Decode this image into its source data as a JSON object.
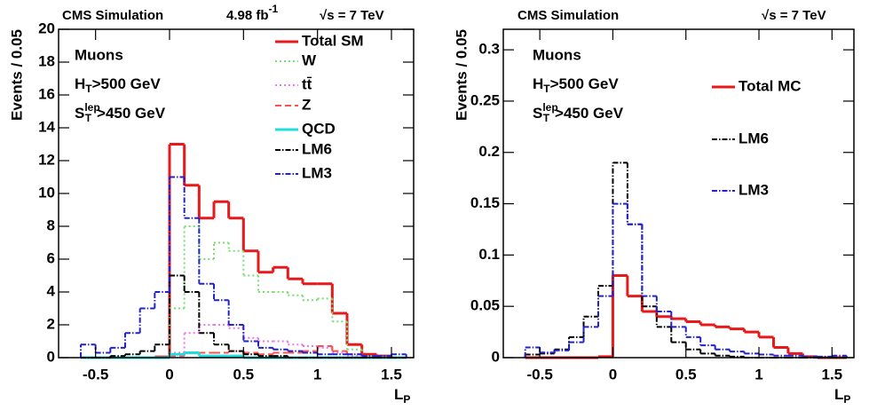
{
  "chart_data": [
    {
      "type": "histogram",
      "title": "CMS Simulation",
      "lumi": {
        "main": "4.98 fb",
        "sup": "-1"
      },
      "energy": "√s = 7 TeV",
      "annotations": [
        "Muons",
        {
          "main": "H",
          "sub": "T",
          "rest": ">500 GeV"
        },
        {
          "main": "S",
          "sub": "T",
          "sup": "lep",
          "rest": ">450 GeV"
        }
      ],
      "y_label": "Events / 0.05",
      "x_label": {
        "main": "L",
        "sub": "P"
      },
      "bins": [
        -0.6,
        -0.5,
        -0.4,
        -0.3,
        -0.2,
        -0.1,
        0,
        0.1,
        0.2,
        0.3,
        0.4,
        0.5,
        0.6,
        0.7,
        0.8,
        0.9,
        1,
        1.1,
        1.2,
        1.3,
        1.4,
        1.5,
        1.6
      ],
      "series": [
        {
          "name": "Total SM",
          "color": "#e8191a",
          "dash": "solid",
          "width": 3,
          "values": [
            0,
            0,
            0,
            0,
            0,
            0.05,
            13,
            10.5,
            8.5,
            9.5,
            8.5,
            6.5,
            5.2,
            5.5,
            4.8,
            4.5,
            4.5,
            2.7,
            0.8,
            0.2,
            0.1,
            0
          ]
        },
        {
          "name": "W",
          "color": "#77e070",
          "dash": "dotted",
          "width": 2,
          "values": [
            0,
            0,
            0,
            0,
            0,
            0,
            3,
            8,
            6,
            7,
            6.5,
            5,
            4,
            4,
            3.8,
            3.5,
            3.6,
            2.2,
            0.5,
            0.1,
            0,
            0
          ]
        },
        {
          "name": "tt̄",
          "color": "#ee77ee",
          "dash": "dotted",
          "width": 2,
          "values": [
            0,
            0,
            0,
            0,
            0,
            0,
            0.3,
            1.5,
            2,
            2,
            1.8,
            1.2,
            1,
            1,
            0.8,
            0.7,
            0.6,
            0.3,
            0.1,
            0,
            0,
            0
          ]
        },
        {
          "name": "Z",
          "color": "#ff5050",
          "dash": "dashed",
          "width": 2,
          "values": [
            0,
            0,
            0,
            0,
            0,
            0,
            0.1,
            0.3,
            0.3,
            0.3,
            0.4,
            0.3,
            0.2,
            0.3,
            0.3,
            0.4,
            0.7,
            0.4,
            0.2,
            0.1,
            0,
            0
          ]
        },
        {
          "name": "QCD",
          "color": "#22dddd",
          "dash": "solid",
          "width": 3,
          "values": [
            0,
            0,
            0,
            0,
            0,
            0,
            0.2,
            0.3,
            0.1,
            0.1,
            0.1,
            0,
            0,
            0,
            0,
            0,
            0,
            0,
            0,
            0,
            0,
            0
          ]
        },
        {
          "name": "LM6",
          "color": "#000000",
          "dash": "dashdot",
          "width": 2,
          "values": [
            0,
            0,
            0.1,
            0.2,
            0.4,
            0.8,
            5,
            4,
            1.5,
            0.8,
            0.4,
            0.2,
            0.1,
            0.1,
            0,
            0,
            0,
            0,
            0,
            0,
            0,
            0
          ]
        },
        {
          "name": "LM3",
          "color": "#2222cc",
          "dash": "dashdot",
          "width": 2,
          "values": [
            0.8,
            0.3,
            0.6,
            1.5,
            3,
            4,
            11,
            8.5,
            4.5,
            3.5,
            2,
            1,
            0.6,
            0.5,
            0.4,
            0.3,
            0.2,
            0.2,
            0.2,
            0.1,
            0.1,
            0.2
          ]
        }
      ],
      "xlim": [
        -0.75,
        1.65
      ],
      "ylim": [
        0,
        20
      ],
      "xticks": [
        -0.5,
        0,
        0.5,
        1,
        1.5
      ],
      "yticks": [
        0,
        2,
        4,
        6,
        8,
        10,
        12,
        14,
        16,
        18,
        20
      ]
    },
    {
      "type": "histogram",
      "title": "CMS Simulation",
      "energy": "√s = 7 TeV",
      "annotations": [
        "Muons",
        {
          "main": "H",
          "sub": "T",
          "rest": ">500 GeV"
        },
        {
          "main": "S",
          "sub": "T",
          "sup": "lep",
          "rest": ">450 GeV"
        }
      ],
      "y_label": "Events / 0.05",
      "x_label": {
        "main": "L",
        "sub": "P"
      },
      "bins": [
        -0.6,
        -0.5,
        -0.4,
        -0.3,
        -0.2,
        -0.1,
        0,
        0.1,
        0.2,
        0.3,
        0.4,
        0.5,
        0.6,
        0.7,
        0.8,
        0.9,
        1,
        1.1,
        1.2,
        1.3,
        1.4,
        1.5,
        1.6
      ],
      "series": [
        {
          "name": "Total MC",
          "color": "#e8191a",
          "dash": "solid",
          "width": 3,
          "values": [
            0,
            0,
            0,
            0,
            0,
            0.001,
            0.08,
            0.06,
            0.045,
            0.04,
            0.038,
            0.035,
            0.032,
            0.03,
            0.028,
            0.025,
            0.02,
            0.01,
            0.004,
            0.001,
            0,
            0
          ]
        },
        {
          "name": "LM6",
          "color": "#000000",
          "dash": "dashdot",
          "width": 2,
          "values": [
            0.003,
            0.004,
            0.008,
            0.02,
            0.04,
            0.07,
            0.19,
            0.13,
            0.05,
            0.03,
            0.015,
            0.008,
            0.004,
            0.002,
            0.001,
            0,
            0,
            0,
            0,
            0,
            0,
            0
          ]
        },
        {
          "name": "LM3",
          "color": "#2222cc",
          "dash": "dashdot",
          "width": 2,
          "values": [
            0.01,
            0.005,
            0.007,
            0.015,
            0.03,
            0.06,
            0.15,
            0.13,
            0.06,
            0.045,
            0.03,
            0.02,
            0.012,
            0.008,
            0.006,
            0.004,
            0.003,
            0.002,
            0.002,
            0.001,
            0.001,
            0.002
          ]
        }
      ],
      "xlim": [
        -0.75,
        1.65
      ],
      "ylim": [
        0,
        0.32
      ],
      "xticks": [
        -0.5,
        0,
        0.5,
        1,
        1.5
      ],
      "yticks": [
        0,
        0.05,
        0.1,
        0.15,
        0.2,
        0.25,
        0.3
      ]
    }
  ]
}
